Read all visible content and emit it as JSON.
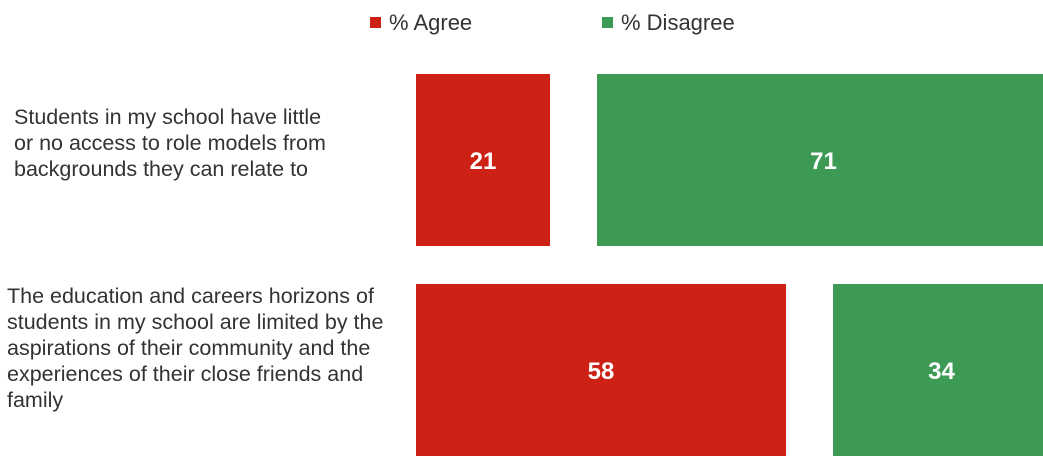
{
  "chart_data": {
    "type": "bar",
    "categories": [
      "Students in my school have little or no access to role models from backgrounds they can relate to",
      "The education and careers horizons of students in my school are limited by the aspirations of their community and the experiences of their close friends and family"
    ],
    "series": [
      {
        "name": "% Agree",
        "values": [
          21,
          58
        ],
        "color": "#cc2114"
      },
      {
        "name": "% Disagree",
        "values": [
          71,
          34
        ],
        "color": "#3d9a55"
      }
    ],
    "xlim": [
      0,
      100
    ],
    "legend_position": "top",
    "grid": false
  }
}
